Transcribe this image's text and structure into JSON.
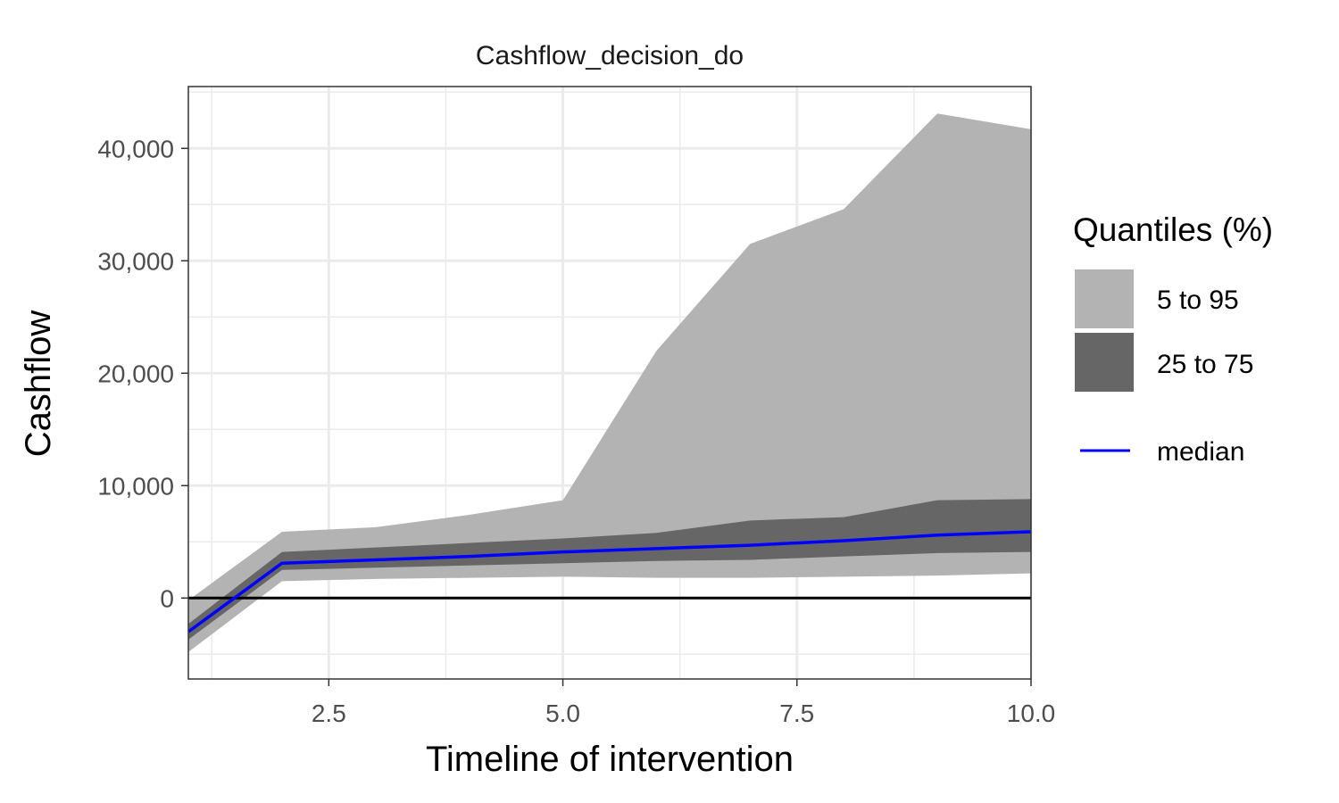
{
  "chart_data": {
    "type": "area",
    "title": "Cashflow_decision_do",
    "xlabel": "Timeline of intervention",
    "ylabel": "Cashflow",
    "xlim": [
      1,
      10
    ],
    "ylim": [
      -7200,
      45500
    ],
    "x_ticks": [
      2.5,
      5.0,
      7.5,
      10.0
    ],
    "x_tick_labels": [
      "2.5",
      "5.0",
      "7.5",
      "10.0"
    ],
    "y_ticks": [
      0,
      10000,
      20000,
      30000,
      40000
    ],
    "y_tick_labels": [
      "0",
      "10,000",
      "20,000",
      "30,000",
      "40,000"
    ],
    "grid": true,
    "reference_line_y": 0,
    "legend": {
      "title": "Quantiles (%)",
      "placement": "right",
      "items": [
        {
          "label": "5 to 95",
          "color": "#b3b3b3"
        },
        {
          "label": "25 to 75",
          "color": "#666666"
        },
        {
          "label": "median",
          "color": "#0000ff"
        }
      ]
    },
    "x": [
      1,
      2,
      3,
      4,
      5,
      6,
      7,
      8,
      9,
      10
    ],
    "bands": [
      {
        "name": "5 to 95",
        "color": "#b3b3b3",
        "lower": [
          -4800,
          1500,
          1700,
          1800,
          1900,
          1800,
          1800,
          1900,
          2000,
          2200
        ],
        "upper": [
          -200,
          5900,
          6300,
          7400,
          8700,
          22000,
          31500,
          34600,
          43100,
          41700
        ]
      },
      {
        "name": "25 to 75",
        "color": "#666666",
        "lower": [
          -3700,
          2500,
          2700,
          2900,
          3100,
          3300,
          3400,
          3700,
          4000,
          4100
        ],
        "upper": [
          -2300,
          4100,
          4500,
          4900,
          5300,
          5800,
          6900,
          7200,
          8700,
          8800
        ]
      }
    ],
    "series": [
      {
        "name": "median",
        "color": "#0000ff",
        "values": [
          -3000,
          3100,
          3400,
          3700,
          4100,
          4400,
          4700,
          5100,
          5600,
          5900
        ]
      }
    ]
  }
}
